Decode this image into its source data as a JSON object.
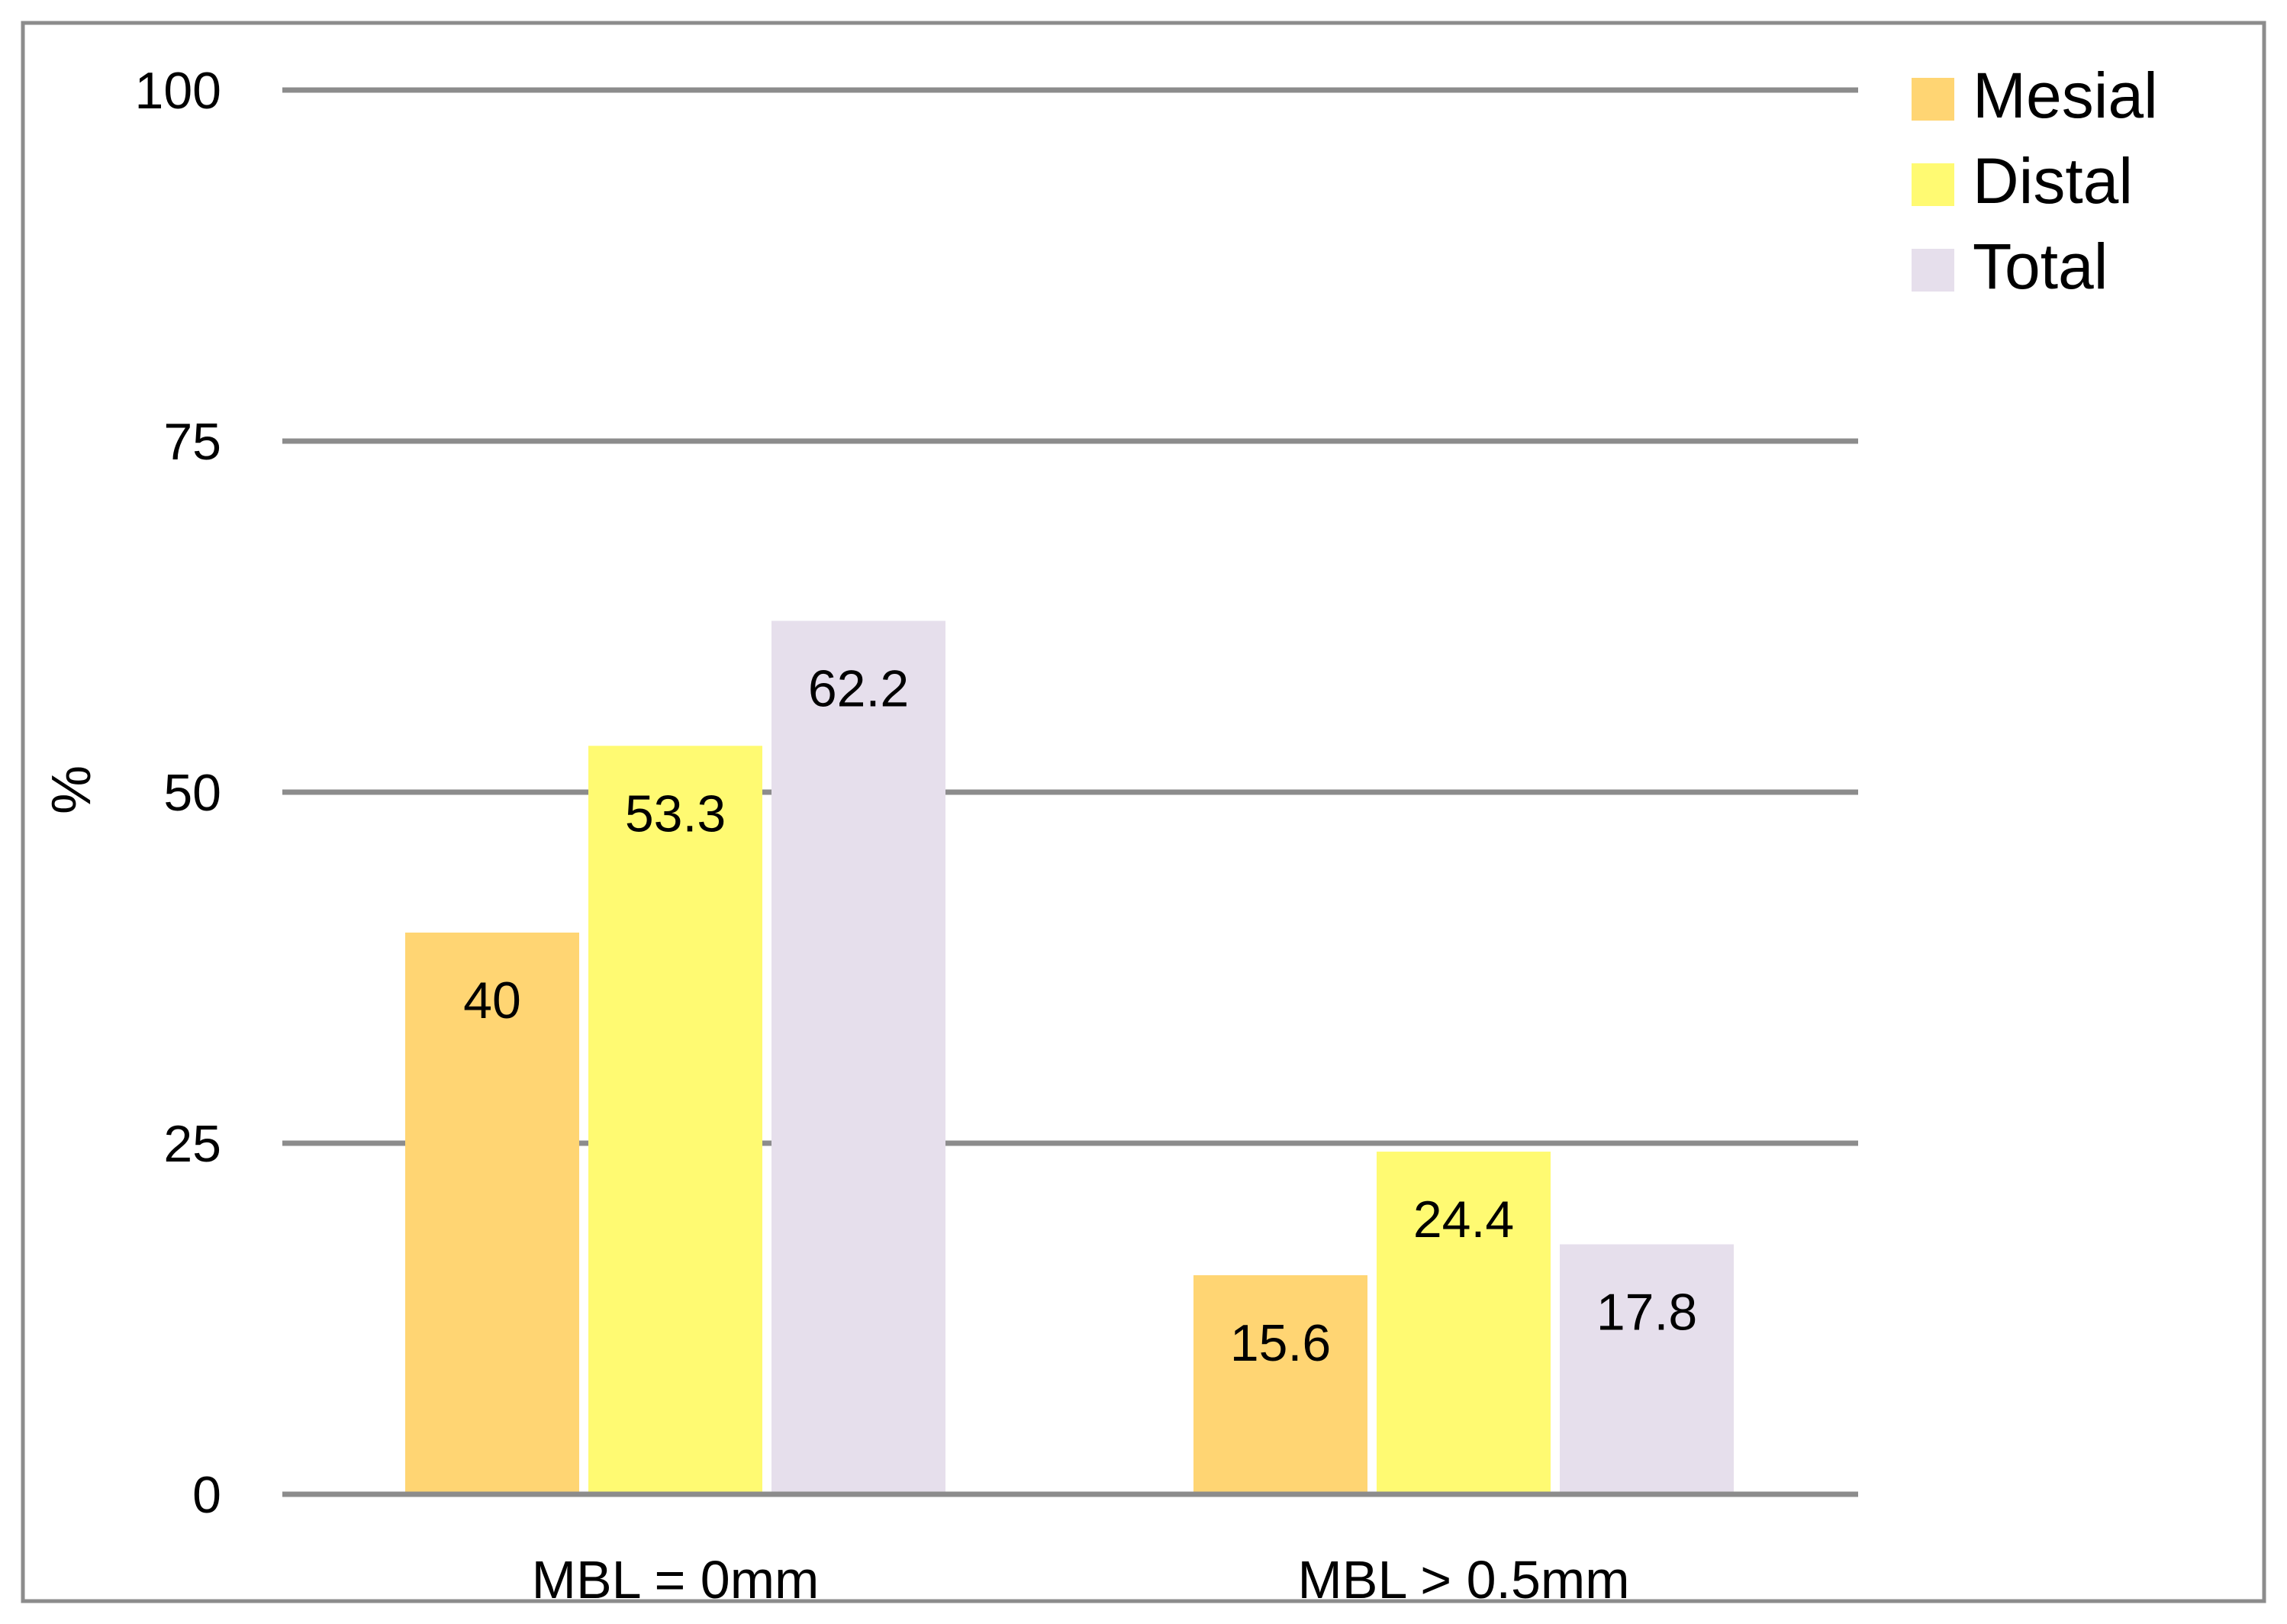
{
  "chart_data": {
    "type": "bar",
    "categories": [
      "MBL = 0mm",
      "MBL > 0.5mm"
    ],
    "series": [
      {
        "name": "Mesial",
        "values": [
          40,
          15.6
        ],
        "labels": [
          "40",
          "15.6"
        ],
        "color": "#FFD573"
      },
      {
        "name": "Distal",
        "values": [
          53.3,
          24.4
        ],
        "labels": [
          "53.3",
          "24.4"
        ],
        "color": "#FFFA72"
      },
      {
        "name": "Total",
        "values": [
          62.2,
          17.8
        ],
        "labels": [
          "62.2",
          "17.8"
        ],
        "color": "#E6DFEC"
      }
    ],
    "title": "",
    "xlabel": "",
    "ylabel": "%",
    "ylim": [
      0,
      100
    ],
    "yticks": [
      0,
      25,
      50,
      75,
      100
    ],
    "ytick_labels": [
      "0",
      "25",
      "50",
      "75",
      "100"
    ],
    "grid": true,
    "gridline_color": "#8C8C8C",
    "border_color": "#8C8C8C",
    "legend_position": "top-right"
  }
}
